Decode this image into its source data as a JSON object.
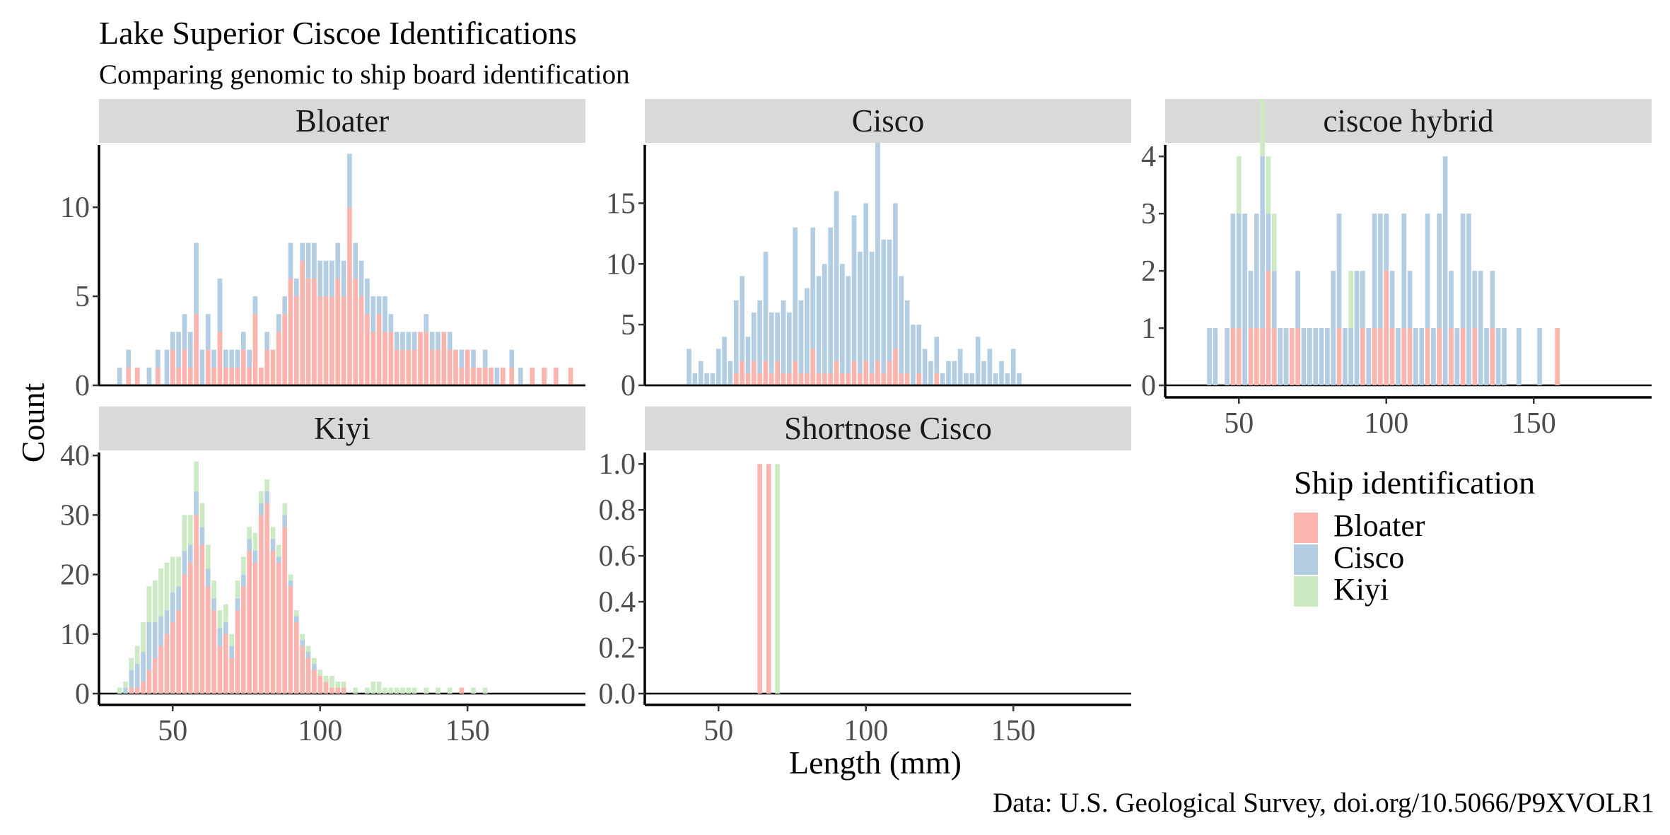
{
  "title": "Lake Superior Ciscoe Identifications",
  "subtitle": "Comparing genomic to ship board identification",
  "caption": "Data: U.S. Geological Survey, doi.org/10.5066/P9XVOLR1",
  "colors": {
    "Bloater": "#fbb4ae",
    "Cisco": "#b3cde3",
    "Kiyi": "#ccebc5",
    "strip": "#d9d9d9"
  },
  "chart_data": {
    "type": "bar",
    "subtype": "stacked histogram, faceted",
    "xlabel": "Length (mm)",
    "ylabel": "Count",
    "xlim": [
      25,
      190
    ],
    "x_ticks": [
      50,
      100,
      150
    ],
    "legend": {
      "title": "Ship identification",
      "position": "right",
      "entries": [
        "Bloater",
        "Cisco",
        "Kiyi"
      ]
    },
    "series_names": [
      "Bloater",
      "Cisco",
      "Kiyi"
    ],
    "grid": false,
    "facets": [
      {
        "name": "Bloater",
        "ylim": [
          0,
          13.5
        ],
        "y_ticks": [
          0,
          5,
          10
        ],
        "x": [
          32,
          35,
          38,
          42,
          45,
          48,
          50,
          52,
          54,
          56,
          58,
          60,
          62,
          64,
          66,
          68,
          70,
          72,
          74,
          76,
          78,
          80,
          82,
          84,
          86,
          88,
          90,
          92,
          94,
          96,
          98,
          100,
          102,
          104,
          106,
          108,
          110,
          112,
          114,
          116,
          118,
          120,
          122,
          124,
          126,
          128,
          130,
          132,
          134,
          136,
          138,
          140,
          142,
          144,
          146,
          148,
          150,
          152,
          154,
          156,
          158,
          160,
          162,
          165,
          168,
          172,
          176,
          180,
          185
        ],
        "series": [
          {
            "name": "Bloater",
            "values": [
              0,
              1,
              1,
              0,
              1,
              0,
              2,
              1,
              2,
              1,
              4,
              0,
              2,
              1,
              3,
              1,
              1,
              1,
              2,
              1,
              4,
              1,
              2,
              2,
              3,
              4,
              6,
              5,
              7,
              6,
              6,
              5,
              5,
              5,
              6,
              5,
              10,
              6,
              5,
              4,
              3,
              4,
              3,
              3,
              2,
              2,
              2,
              2,
              3,
              3,
              2,
              2,
              3,
              2,
              2,
              1,
              2,
              1,
              1,
              1,
              1,
              0,
              1,
              1,
              0,
              1,
              1,
              1,
              1
            ]
          },
          {
            "name": "Cisco",
            "values": [
              1,
              1,
              0,
              1,
              1,
              2,
              1,
              2,
              2,
              2,
              4,
              2,
              2,
              1,
              3,
              1,
              1,
              1,
              1,
              1,
              1,
              0,
              1,
              0,
              1,
              1,
              2,
              1,
              1,
              2,
              2,
              2,
              2,
              2,
              2,
              2,
              3,
              2,
              2,
              2,
              2,
              1,
              2,
              1,
              1,
              1,
              1,
              1,
              0,
              1,
              1,
              1,
              0,
              1,
              0,
              1,
              0,
              1,
              0,
              1,
              0,
              1,
              0,
              1,
              1,
              0,
              0,
              0,
              0
            ]
          }
        ]
      },
      {
        "name": "Cisco",
        "ylim": [
          0,
          19.8
        ],
        "y_ticks": [
          0,
          5,
          10,
          15
        ],
        "x": [
          40,
          42,
          44,
          46,
          48,
          50,
          52,
          54,
          56,
          58,
          60,
          62,
          64,
          66,
          68,
          70,
          72,
          74,
          76,
          78,
          80,
          82,
          84,
          86,
          88,
          90,
          92,
          94,
          96,
          98,
          100,
          102,
          104,
          106,
          108,
          110,
          112,
          114,
          116,
          118,
          120,
          122,
          124,
          126,
          128,
          130,
          132,
          134,
          136,
          138,
          140,
          142,
          144,
          146,
          148,
          150,
          152
        ],
        "series": [
          {
            "name": "Bloater",
            "values": [
              0,
              0,
              0,
              0,
              0,
              0,
              0,
              0,
              1,
              2,
              1,
              2,
              1,
              2,
              1,
              2,
              1,
              1,
              2,
              1,
              1,
              3,
              1,
              1,
              1,
              2,
              1,
              1,
              2,
              1,
              2,
              1,
              2,
              1,
              2,
              3,
              1,
              1,
              0,
              1,
              0,
              0,
              1,
              0,
              0,
              0,
              0,
              0,
              0,
              0,
              0,
              0,
              0,
              0,
              0,
              0,
              0
            ]
          },
          {
            "name": "Cisco",
            "values": [
              3,
              1,
              2,
              1,
              1,
              3,
              4,
              2,
              6,
              7,
              3,
              4,
              6,
              9,
              5,
              4,
              6,
              5,
              11,
              6,
              7,
              10,
              8,
              9,
              12,
              14,
              9,
              8,
              12,
              10,
              13,
              10,
              18,
              11,
              10,
              12,
              8,
              6,
              5,
              4,
              3,
              2,
              3,
              1,
              2,
              2,
              3,
              1,
              1,
              4,
              2,
              3,
              1,
              2,
              1,
              3,
              1
            ]
          }
        ]
      },
      {
        "name": "ciscoe hybrid",
        "ylim": [
          0,
          4.2
        ],
        "y_ticks": [
          0,
          1,
          2,
          3,
          4
        ],
        "x": [
          40,
          42,
          44,
          46,
          48,
          50,
          52,
          54,
          56,
          58,
          60,
          62,
          64,
          66,
          68,
          70,
          72,
          74,
          76,
          78,
          80,
          82,
          84,
          86,
          88,
          90,
          92,
          94,
          96,
          98,
          100,
          102,
          104,
          106,
          108,
          110,
          112,
          114,
          116,
          118,
          120,
          122,
          124,
          126,
          128,
          130,
          132,
          134,
          136,
          138,
          140,
          142,
          145,
          148,
          152,
          158
        ],
        "series": [
          {
            "name": "Bloater",
            "values": [
              0,
              0,
              0,
              0,
              1,
              1,
              0,
              1,
              1,
              1,
              2,
              1,
              0,
              0,
              1,
              1,
              0,
              0,
              0,
              0,
              0,
              0,
              1,
              0,
              0,
              0,
              1,
              0,
              1,
              1,
              2,
              1,
              0,
              1,
              1,
              0,
              0,
              1,
              0,
              1,
              0,
              1,
              0,
              1,
              0,
              1,
              0,
              0,
              1,
              0,
              0,
              0,
              0,
              0,
              0,
              1
            ]
          },
          {
            "name": "Cisco",
            "values": [
              1,
              1,
              0,
              1,
              2,
              2,
              3,
              1,
              2,
              3,
              1,
              1,
              1,
              1,
              0,
              1,
              1,
              1,
              1,
              1,
              1,
              2,
              2,
              1,
              1,
              2,
              1,
              1,
              2,
              2,
              1,
              1,
              1,
              2,
              1,
              1,
              1,
              2,
              1,
              2,
              4,
              1,
              1,
              2,
              3,
              1,
              2,
              1,
              1,
              1,
              1,
              0,
              1,
              0,
              1,
              0
            ]
          },
          {
            "name": "Kiyi",
            "values": [
              0,
              0,
              0,
              0,
              0,
              1,
              0,
              0,
              0,
              1,
              1,
              1,
              0,
              0,
              0,
              0,
              0,
              0,
              0,
              0,
              0,
              0,
              0,
              0,
              1,
              0,
              0,
              0,
              0,
              0,
              0,
              0,
              0,
              0,
              0,
              0,
              0,
              0,
              0,
              0,
              0,
              0,
              0,
              0,
              0,
              0,
              0,
              0,
              0,
              0,
              0,
              0,
              0,
              0,
              0,
              0
            ]
          }
        ]
      },
      {
        "name": "Kiyi",
        "ylim": [
          0,
          40.5
        ],
        "y_ticks": [
          0,
          10,
          20,
          30,
          40
        ],
        "x": [
          32,
          34,
          36,
          38,
          40,
          42,
          44,
          46,
          48,
          50,
          52,
          54,
          56,
          58,
          60,
          62,
          64,
          66,
          68,
          70,
          72,
          74,
          76,
          78,
          80,
          82,
          84,
          86,
          88,
          90,
          92,
          94,
          96,
          98,
          100,
          102,
          104,
          106,
          108,
          112,
          116,
          118,
          120,
          122,
          124,
          126,
          128,
          130,
          132,
          136,
          140,
          144,
          148,
          152,
          156
        ],
        "series": [
          {
            "name": "Bloater",
            "values": [
              0,
              0,
              1,
              1,
              2,
              4,
              6,
              8,
              10,
              12,
              14,
              20,
              22,
              30,
              25,
              18,
              14,
              8,
              10,
              6,
              14,
              18,
              24,
              22,
              30,
              32,
              24,
              22,
              28,
              18,
              12,
              8,
              6,
              4,
              3,
              2,
              1,
              1,
              1,
              0,
              0,
              0,
              0,
              0,
              0,
              0,
              0,
              0,
              0,
              0,
              0,
              0,
              1,
              0,
              0
            ]
          },
          {
            "name": "Cisco",
            "values": [
              0,
              1,
              3,
              4,
              5,
              8,
              6,
              5,
              4,
              5,
              4,
              4,
              3,
              4,
              3,
              3,
              2,
              3,
              2,
              2,
              2,
              2,
              2,
              2,
              2,
              2,
              2,
              1,
              2,
              1,
              1,
              1,
              1,
              1,
              0,
              0,
              0,
              0,
              0,
              0,
              0,
              0,
              0,
              0,
              0,
              0,
              0,
              0,
              0,
              0,
              0,
              0,
              0,
              0,
              0
            ]
          },
          {
            "name": "Kiyi",
            "values": [
              1,
              1,
              2,
              3,
              5,
              6,
              7,
              8,
              8,
              6,
              5,
              6,
              5,
              5,
              4,
              4,
              3,
              3,
              3,
              2,
              3,
              3,
              2,
              3,
              2,
              2,
              2,
              2,
              2,
              1,
              1,
              1,
              1,
              1,
              1,
              1,
              2,
              1,
              1,
              1,
              1,
              2,
              2,
              1,
              1,
              1,
              1,
              1,
              1,
              1,
              1,
              1,
              0,
              1,
              1
            ]
          }
        ]
      },
      {
        "name": "Shortnose Cisco",
        "ylim": [
          0,
          1.05
        ],
        "y_ticks": [
          0.0,
          0.2,
          0.4,
          0.6,
          0.8,
          1.0
        ],
        "x": [
          64,
          67,
          70
        ],
        "series": [
          {
            "name": "Bloater",
            "values": [
              1,
              1,
              0
            ]
          },
          {
            "name": "Kiyi",
            "values": [
              0,
              0,
              1
            ]
          }
        ]
      }
    ]
  }
}
